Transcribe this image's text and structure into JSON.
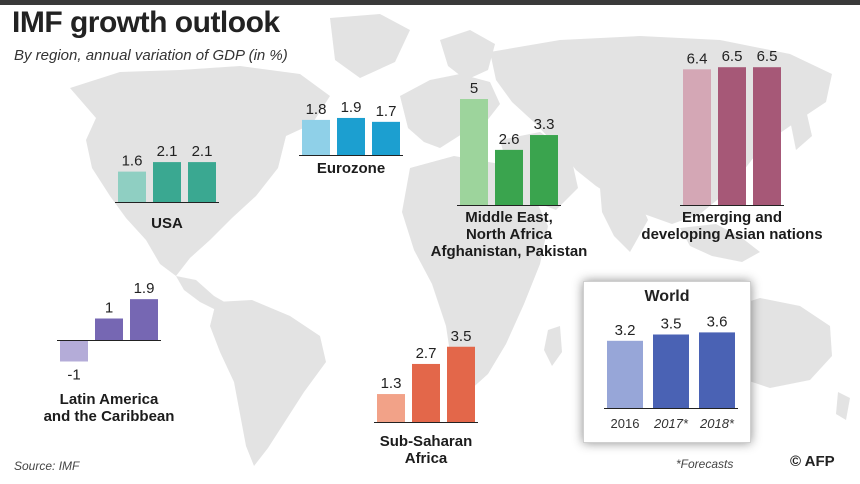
{
  "title": "IMF growth outlook",
  "subtitle": "By region, annual variation of GDP (in %)",
  "source": "Source: IMF",
  "footnote": "*Forecasts",
  "credit": "© AFP",
  "chart_data": {
    "type": "bar",
    "categories": [
      "2016",
      "2017*",
      "2018*"
    ],
    "unit": "%",
    "regions": [
      {
        "id": "usa",
        "name_lines": [
          "USA"
        ],
        "values": [
          1.6,
          2.1,
          2.1
        ],
        "colors": [
          "#8fcfc2",
          "#3aa891",
          "#3aa891"
        ]
      },
      {
        "id": "eurozone",
        "name_lines": [
          "Eurozone"
        ],
        "values": [
          1.8,
          1.9,
          1.7
        ],
        "colors": [
          "#8fd0e8",
          "#1c9fd0",
          "#1c9fd0"
        ]
      },
      {
        "id": "mena",
        "name_lines": [
          "Middle East,",
          "North Africa",
          "Afghanistan, Pakistan"
        ],
        "values": [
          5,
          2.6,
          3.3
        ],
        "colors": [
          "#9dd49c",
          "#3aa44e",
          "#3aa44e"
        ]
      },
      {
        "id": "asia",
        "name_lines": [
          "Emerging and",
          "developing Asian nations"
        ],
        "values": [
          6.4,
          6.5,
          6.5
        ],
        "colors": [
          "#d4a7b5",
          "#a65877",
          "#a65877"
        ]
      },
      {
        "id": "latam",
        "name_lines": [
          "Latin America",
          "and the Caribbean"
        ],
        "values": [
          -1,
          1,
          1.9
        ],
        "colors": [
          "#b4acd8",
          "#7667b3",
          "#7667b3"
        ]
      },
      {
        "id": "ssa",
        "name_lines": [
          "Sub-Saharan",
          "Africa"
        ],
        "values": [
          1.3,
          2.7,
          3.5
        ],
        "colors": [
          "#f2a288",
          "#e3674a",
          "#e3674a"
        ]
      },
      {
        "id": "world",
        "name_lines": [
          "World"
        ],
        "values": [
          3.2,
          3.5,
          3.6
        ],
        "colors": [
          "#97a6d8",
          "#4a62b4",
          "#4a62b4"
        ],
        "show_years": true
      }
    ]
  }
}
